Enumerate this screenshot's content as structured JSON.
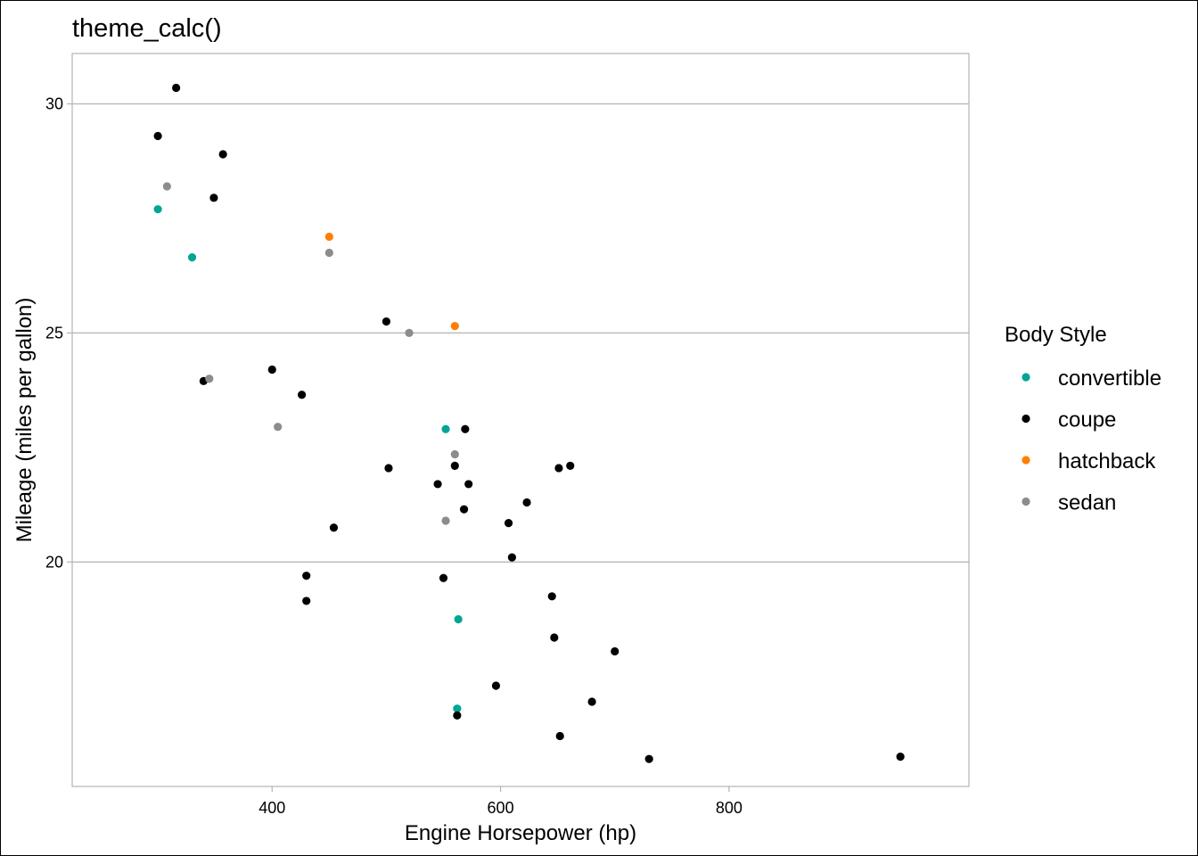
{
  "chart_data": {
    "type": "scatter",
    "title": "theme_calc()",
    "xlabel": "Engine Horsepower (hp)",
    "ylabel": "Mileage (miles per gallon)",
    "xlim": [
      225,
      1010
    ],
    "ylim": [
      15.1,
      31.1
    ],
    "x_ticks": [
      400,
      600,
      800
    ],
    "y_ticks": [
      20,
      25,
      30
    ],
    "grid": {
      "horizontal_major": true,
      "vertical": false
    },
    "legend": {
      "title": "Body Style",
      "placement": "right",
      "entries": [
        {
          "name": "convertible",
          "color": "#00A693"
        },
        {
          "name": "coupe",
          "color": "#000000"
        },
        {
          "name": "hatchback",
          "color": "#FF8000"
        },
        {
          "name": "sedan",
          "color": "#8C8C8C"
        }
      ]
    },
    "series": [
      {
        "name": "convertible",
        "points": [
          [
            300,
            27.7
          ],
          [
            330,
            26.65
          ],
          [
            552,
            22.9
          ],
          [
            563,
            18.75
          ],
          [
            562,
            16.8
          ]
        ]
      },
      {
        "name": "coupe",
        "points": [
          [
            316,
            30.35
          ],
          [
            300,
            29.3
          ],
          [
            357,
            28.9
          ],
          [
            349,
            27.95
          ],
          [
            340,
            23.95
          ],
          [
            400,
            24.2
          ],
          [
            426,
            23.65
          ],
          [
            500,
            25.25
          ],
          [
            569,
            22.9
          ],
          [
            502,
            22.05
          ],
          [
            560,
            22.1
          ],
          [
            545,
            21.7
          ],
          [
            572,
            21.7
          ],
          [
            568,
            21.15
          ],
          [
            623,
            21.3
          ],
          [
            607,
            20.85
          ],
          [
            454,
            20.75
          ],
          [
            610,
            20.1
          ],
          [
            430,
            19.7
          ],
          [
            550,
            19.65
          ],
          [
            430,
            19.15
          ],
          [
            645,
            19.25
          ],
          [
            647,
            18.35
          ],
          [
            700,
            18.05
          ],
          [
            596,
            17.3
          ],
          [
            680,
            16.95
          ],
          [
            562,
            16.65
          ],
          [
            652,
            16.2
          ],
          [
            730,
            15.7
          ],
          [
            950,
            15.75
          ],
          [
            651,
            22.05
          ],
          [
            661,
            22.1
          ]
        ]
      },
      {
        "name": "hatchback",
        "points": [
          [
            450,
            27.1
          ],
          [
            560,
            25.15
          ]
        ]
      },
      {
        "name": "sedan",
        "points": [
          [
            308,
            28.2
          ],
          [
            450,
            26.75
          ],
          [
            520,
            25.0
          ],
          [
            345,
            24.0
          ],
          [
            405,
            22.95
          ],
          [
            560,
            22.35
          ],
          [
            552,
            20.9
          ]
        ]
      }
    ]
  }
}
